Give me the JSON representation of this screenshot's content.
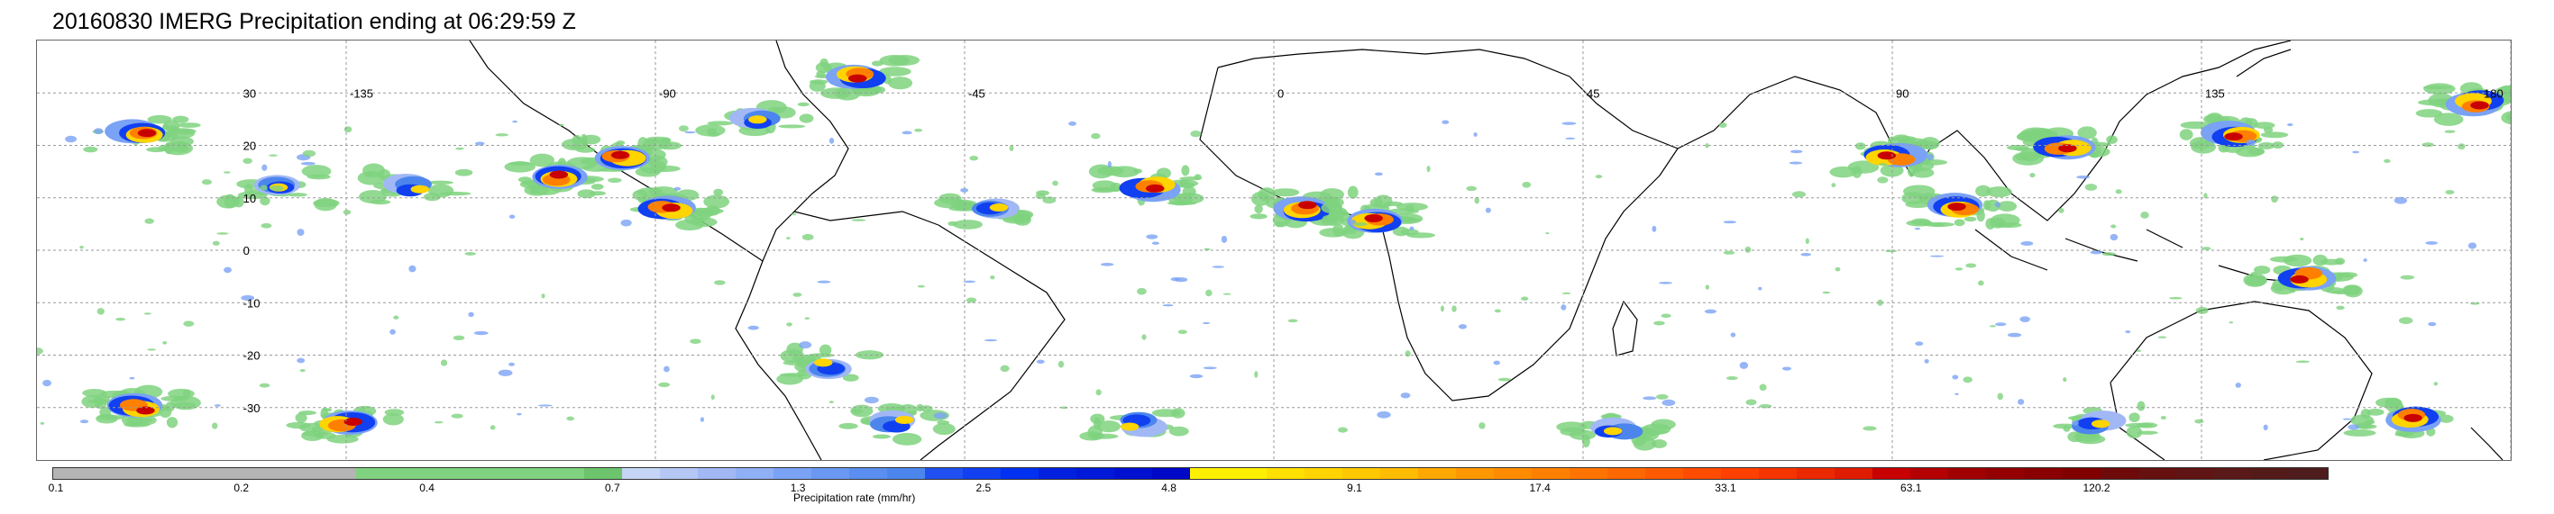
{
  "title": "20160830 IMERG Precipitation ending at 06:29:59 Z",
  "map": {
    "lon_labels": [
      "-135",
      "-90",
      "-45",
      "0",
      "45",
      "90",
      "135",
      "180"
    ],
    "lat_labels": [
      "30",
      "20",
      "10",
      "0",
      "-10",
      "-20",
      "-30"
    ],
    "grid": true,
    "coastline_color": "#000000",
    "gridline_color": "#9a9a9a"
  },
  "colorbar": {
    "title": "Precipitation rate (mm/hr)",
    "tick_labels": [
      "0.1",
      "0.2",
      "0.4",
      "0.7",
      "1.3",
      "2.5",
      "4.8",
      "9.1",
      "17.4",
      "33.1",
      "63.1",
      "120.2"
    ],
    "colors": [
      "#b4b4b4",
      "#b4b4b4",
      "#b4b4b4",
      "#b4b4b4",
      "#b4b4b4",
      "#b4b4b4",
      "#b4b4b4",
      "#b4b4b4",
      "#7fd27f",
      "#7fd27f",
      "#7fd27f",
      "#7fd27f",
      "#7fd27f",
      "#7fd27f",
      "#6cc46c",
      "#c6d4f5",
      "#b5c8f5",
      "#a1b8f5",
      "#8fb0f5",
      "#7aa2f5",
      "#6a98f2",
      "#5a8ef0",
      "#4c86ed",
      "#2050f0",
      "#1040f0",
      "#0030f0",
      "#0020e0",
      "#0018d8",
      "#0010d0",
      "#0008c8",
      "#fff000",
      "#fff000",
      "#ffe000",
      "#ffd400",
      "#ffc800",
      "#ffbc00",
      "#ffa800",
      "#ff9800",
      "#ff8c00",
      "#ff8000",
      "#ff7400",
      "#ff6800",
      "#ff5a00",
      "#ff4c00",
      "#ff4000",
      "#f53400",
      "#eb2800",
      "#e01c00",
      "#c80000",
      "#b40000",
      "#a00000",
      "#940000",
      "#8a0000",
      "#800000",
      "#6e0a0a",
      "#661010",
      "#601414",
      "#5a1818",
      "#541a1a",
      "#4e1c1c"
    ]
  },
  "precip_regions": [
    {
      "lon": -165,
      "lat": 22,
      "level": "heavy"
    },
    {
      "lon": -145,
      "lat": 12,
      "level": "moderate"
    },
    {
      "lon": -125,
      "lat": 12,
      "level": "moderate"
    },
    {
      "lon": -105,
      "lat": 14,
      "level": "heavy"
    },
    {
      "lon": -95,
      "lat": 18,
      "level": "heavy"
    },
    {
      "lon": -88,
      "lat": 8,
      "level": "heavy"
    },
    {
      "lon": -75,
      "lat": 25,
      "level": "moderate"
    },
    {
      "lon": -60,
      "lat": 33,
      "level": "heavy"
    },
    {
      "lon": -40,
      "lat": 8,
      "level": "moderate"
    },
    {
      "lon": -18,
      "lat": 12,
      "level": "heavy"
    },
    {
      "lon": 5,
      "lat": 8,
      "level": "heavy"
    },
    {
      "lon": 15,
      "lat": 6,
      "level": "heavy"
    },
    {
      "lon": 90,
      "lat": 18,
      "level": "heavy"
    },
    {
      "lon": 100,
      "lat": 8,
      "level": "heavy"
    },
    {
      "lon": 115,
      "lat": 20,
      "level": "heavy"
    },
    {
      "lon": 140,
      "lat": 22,
      "level": "heavy"
    },
    {
      "lon": 175,
      "lat": 28,
      "level": "heavy"
    },
    {
      "lon": 150,
      "lat": -5,
      "level": "heavy"
    },
    {
      "lon": -65,
      "lat": -22,
      "level": "moderate"
    },
    {
      "lon": -55,
      "lat": -33,
      "level": "moderate"
    },
    {
      "lon": -165,
      "lat": -30,
      "level": "heavy"
    },
    {
      "lon": -135,
      "lat": -33,
      "level": "heavy"
    },
    {
      "lon": -20,
      "lat": -33,
      "level": "moderate"
    },
    {
      "lon": 50,
      "lat": -34,
      "level": "moderate"
    },
    {
      "lon": 120,
      "lat": -33,
      "level": "moderate"
    },
    {
      "lon": 165,
      "lat": -32,
      "level": "heavy"
    }
  ]
}
